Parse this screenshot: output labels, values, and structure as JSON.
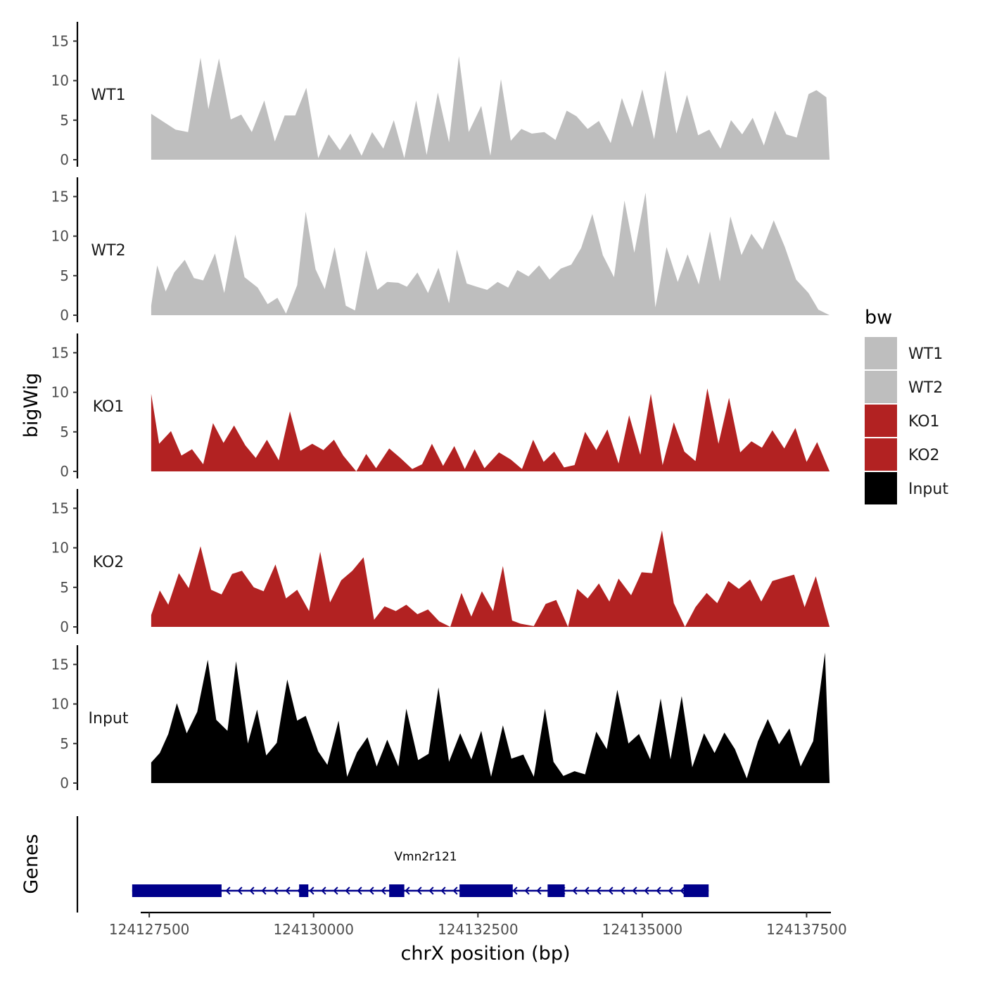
{
  "chart_data": {
    "type": "area",
    "title": "",
    "ylabel": "bigWig",
    "xlabel": "chrX position (bp)",
    "ylim": [
      0,
      17
    ],
    "yticks": [
      0,
      5,
      10,
      15
    ],
    "xlim": [
      124127370,
      124137870
    ],
    "xticks": [
      124127500,
      124130000,
      124132500,
      124135000,
      124137500
    ],
    "xtick_labels": [
      "124127500",
      "124130000",
      "124132500",
      "124135000",
      "124137500"
    ],
    "legend": {
      "title": "bw",
      "position": "right",
      "entries": [
        {
          "label": "WT1",
          "color": "#bebebe"
        },
        {
          "label": "WT2",
          "color": "#bebebe"
        },
        {
          "label": "KO1",
          "color": "#b22222"
        },
        {
          "label": "KO2",
          "color": "#b22222"
        },
        {
          "label": "Input",
          "color": "#000000"
        }
      ]
    },
    "tracks": [
      {
        "name": "WT1",
        "color": "#bebebe",
        "x": [
          124127530,
          124127900,
          124128090,
          124128280,
          124128400,
          124128560,
          124128740,
          124128900,
          124129060,
          124129250,
          124129410,
          124129560,
          124129720,
          124129890,
          124130070,
          124130230,
          124130400,
          124130560,
          124130730,
          124130890,
          124131060,
          124131220,
          124131380,
          124131560,
          124131720,
          124131890,
          124132060,
          124132210,
          124132360,
          124132550,
          124132690,
          124132850,
          124133000,
          124133160,
          124133320,
          124133510,
          124133680,
          124133850,
          124134000,
          124134170,
          124134340,
          124134520,
          124134690,
          124134850,
          124135000,
          124135180,
          124135350,
          124135520,
          124135680,
          124135850,
          124136020,
          124136190,
          124136350,
          124136520,
          124136680,
          124136850,
          124137020,
          124137190,
          124137350,
          124137530,
          124137650,
          124137800,
          124137850
        ],
        "y": [
          5.8,
          3.8,
          3.5,
          12.9,
          6.4,
          12.8,
          5.1,
          5.7,
          3.5,
          7.5,
          2.3,
          5.6,
          5.6,
          9.1,
          0.2,
          3.2,
          1.2,
          3.3,
          0.5,
          3.5,
          1.4,
          5.0,
          0.2,
          7.5,
          0.6,
          8.5,
          2.2,
          13.1,
          3.5,
          6.8,
          0.5,
          10.2,
          2.4,
          3.9,
          3.3,
          3.5,
          2.5,
          6.2,
          5.5,
          3.9,
          4.9,
          2.1,
          7.8,
          4.1,
          8.9,
          2.6,
          11.3,
          3.3,
          8.2,
          3.1,
          3.8,
          1.4,
          5.0,
          3.2,
          5.3,
          1.8,
          6.2,
          3.2,
          2.8,
          8.3,
          8.8,
          7.9,
          0
        ]
      },
      {
        "name": "WT2",
        "color": "#bebebe",
        "x": [
          124127530,
          124127620,
          124127750,
          124127880,
          124128040,
          124128180,
          124128320,
          124128500,
          124128640,
          124128810,
          124128950,
          124129150,
          124129300,
          124129450,
          124129580,
          124129750,
          124129880,
          124130030,
          124130170,
          124130320,
          124130490,
          124130630,
          124130800,
          124130970,
          124131120,
          124131290,
          124131420,
          124131580,
          124131740,
          124131900,
          124132060,
          124132180,
          124132330,
          124132480,
          124132640,
          124132800,
          124132960,
          124133100,
          124133270,
          124133430,
          124133590,
          124133760,
          124133920,
          124134070,
          124134240,
          124134400,
          124134570,
          124134730,
          124134880,
          124135050,
          124135200,
          124135370,
          124135540,
          124135690,
          124135860,
          124136030,
          124136180,
          124136340,
          124136510,
          124136660,
          124136830,
          124137000,
          124137170,
          124137340,
          124137530,
          124137680,
          124137850
        ],
        "y": [
          1.2,
          6.3,
          3.0,
          5.4,
          7.0,
          4.7,
          4.4,
          7.8,
          2.8,
          10.2,
          4.8,
          3.5,
          1.4,
          2.2,
          0.2,
          3.8,
          13.1,
          5.8,
          3.3,
          8.6,
          1.2,
          0.6,
          8.2,
          3.2,
          4.2,
          4.1,
          3.6,
          5.4,
          2.8,
          6.0,
          1.5,
          8.3,
          4.0,
          3.6,
          3.2,
          4.2,
          3.5,
          5.7,
          4.9,
          6.3,
          4.5,
          5.9,
          6.4,
          8.5,
          12.8,
          7.6,
          4.8,
          14.5,
          7.9,
          15.5,
          1.0,
          8.6,
          4.2,
          7.7,
          3.9,
          10.6,
          4.3,
          12.5,
          7.6,
          10.3,
          8.3,
          12.0,
          8.6,
          4.5,
          2.8,
          0.7,
          0
        ]
      },
      {
        "name": "KO1",
        "color": "#b22222",
        "x": [
          124127530,
          124127650,
          124127830,
          124127990,
          124128150,
          124128320,
          124128470,
          124128630,
          124128790,
          124128960,
          124129120,
          124129290,
          124129470,
          124129640,
          124129800,
          124129980,
          124130150,
          124130310,
          124130450,
          124130650,
          124130800,
          124130950,
          124131150,
          124131320,
          124131500,
          124131650,
          124131800,
          124131970,
          124132140,
          124132300,
          124132450,
          124132600,
          124132820,
          124133000,
          124133170,
          124133340,
          124133500,
          124133660,
          124133810,
          124133970,
          124134130,
          124134300,
          124134470,
          124134640,
          124134800,
          124134970,
          124135130,
          124135310,
          124135480,
          124135640,
          124135810,
          124135990,
          124136160,
          124136320,
          124136490,
          124136660,
          124136820,
          124136980,
          124137160,
          124137330,
          124137500,
          124137660,
          124137850
        ],
        "y": [
          9.8,
          3.5,
          5.1,
          2.0,
          2.8,
          0.9,
          6.1,
          3.6,
          5.8,
          3.3,
          1.7,
          4.0,
          1.4,
          7.6,
          2.6,
          3.5,
          2.7,
          4.0,
          2.0,
          0.0,
          2.2,
          0.4,
          2.9,
          1.7,
          0.3,
          0.9,
          3.5,
          0.7,
          3.2,
          0.3,
          2.8,
          0.4,
          2.4,
          1.5,
          0.3,
          4.0,
          1.2,
          2.5,
          0.5,
          0.8,
          5.0,
          2.7,
          5.3,
          1.0,
          7.1,
          2.1,
          9.8,
          0.8,
          6.2,
          2.5,
          1.3,
          10.5,
          3.5,
          9.3,
          2.4,
          3.8,
          3.0,
          5.2,
          2.9,
          5.5,
          1.2,
          3.7,
          0
        ]
      },
      {
        "name": "KO2",
        "color": "#b22222",
        "x": [
          124127530,
          124127660,
          124127790,
          124127950,
          124128100,
          124128280,
          124128440,
          124128600,
          124128760,
          124128910,
          124129090,
          124129240,
          124129420,
          124129580,
          124129750,
          124129930,
          124130100,
          124130250,
          124130420,
          124130590,
          124130760,
          124130920,
          124131080,
          124131250,
          124131410,
          124131580,
          124131740,
          124131910,
          124132080,
          124132250,
          124132400,
          124132560,
          124132730,
          124132880,
          124133020,
          124133150,
          124133350,
          124133530,
          124133690,
          124133870,
          124134010,
          124134170,
          124134340,
          124134500,
          124134640,
          124134830,
          124134990,
          124135150,
          124135300,
          124135480,
          124135650,
          124135810,
          124135980,
          124136140,
          124136310,
          124136470,
          124136640,
          124136810,
          124136980,
          124137140,
          124137310,
          124137470,
          124137640,
          124137850
        ],
        "y": [
          1.5,
          4.6,
          2.8,
          6.8,
          4.9,
          10.2,
          4.7,
          4.1,
          6.7,
          7.1,
          5.0,
          4.5,
          7.9,
          3.6,
          4.7,
          2.0,
          9.5,
          3.1,
          5.9,
          7.1,
          8.8,
          0.9,
          2.6,
          2.0,
          2.8,
          1.6,
          2.2,
          0.7,
          0.0,
          4.3,
          1.3,
          4.5,
          2.0,
          7.7,
          0.8,
          0.4,
          0.1,
          2.9,
          3.4,
          0.0,
          4.8,
          3.6,
          5.5,
          3.2,
          6.1,
          4.0,
          6.9,
          6.8,
          12.2,
          3.0,
          0.0,
          2.5,
          4.3,
          3.0,
          5.8,
          4.8,
          6.0,
          3.2,
          5.8,
          6.2,
          6.6,
          2.5,
          6.4,
          0
        ]
      },
      {
        "name": "Input",
        "color": "#000000",
        "x": [
          124127530,
          124127660,
          124127790,
          124127920,
          124128070,
          124128230,
          124128390,
          124128520,
          124128690,
          124128820,
          124129000,
          124129140,
          124129280,
          124129440,
          124129600,
          124129750,
          124129880,
          124130070,
          124130210,
          124130380,
          124130510,
          124130660,
          124130820,
          124130960,
          124131120,
          124131290,
          124131410,
          124131590,
          124131750,
          124131900,
          124132060,
          124132230,
          124132400,
          124132550,
          124132700,
          124132880,
          124133010,
          124133190,
          124133350,
          124133520,
          124133650,
          124133800,
          124133970,
          124134130,
          124134300,
          124134460,
          124134620,
          124134790,
          124134950,
          124135120,
          124135280,
          124135430,
          124135600,
          124135760,
          124135940,
          124136100,
          124136250,
          124136410,
          124136590,
          124136760,
          124136910,
          124137080,
          124137240,
          124137410,
          124137600,
          124137780,
          124137850
        ],
        "y": [
          2.6,
          3.8,
          6.2,
          10.1,
          6.3,
          9.0,
          15.6,
          8.0,
          6.6,
          15.4,
          5.0,
          9.3,
          3.5,
          5.1,
          13.1,
          7.9,
          8.5,
          4.0,
          2.3,
          7.9,
          0.8,
          3.9,
          5.8,
          2.1,
          5.5,
          2.1,
          9.4,
          2.9,
          3.7,
          12.1,
          2.7,
          6.3,
          3.0,
          6.6,
          0.8,
          7.3,
          3.1,
          3.6,
          0.8,
          9.4,
          2.7,
          0.9,
          1.5,
          1.1,
          6.5,
          4.3,
          11.8,
          5.0,
          6.2,
          3.0,
          10.7,
          3.0,
          11.0,
          2.0,
          6.3,
          3.8,
          6.4,
          4.3,
          0.6,
          5.3,
          8.1,
          4.9,
          6.9,
          2.1,
          5.3,
          16.5,
          0
        ]
      }
    ],
    "genes": [
      {
        "name": "Vmn2r121",
        "strand": "-",
        "start": 124127240,
        "end": 124136010,
        "exons": [
          [
            124127240,
            124128600
          ],
          [
            124129780,
            124129920
          ],
          [
            124131150,
            124131380
          ],
          [
            124132220,
            124133030
          ],
          [
            124133560,
            124133820
          ],
          [
            124135630,
            124136010
          ]
        ]
      }
    ]
  }
}
